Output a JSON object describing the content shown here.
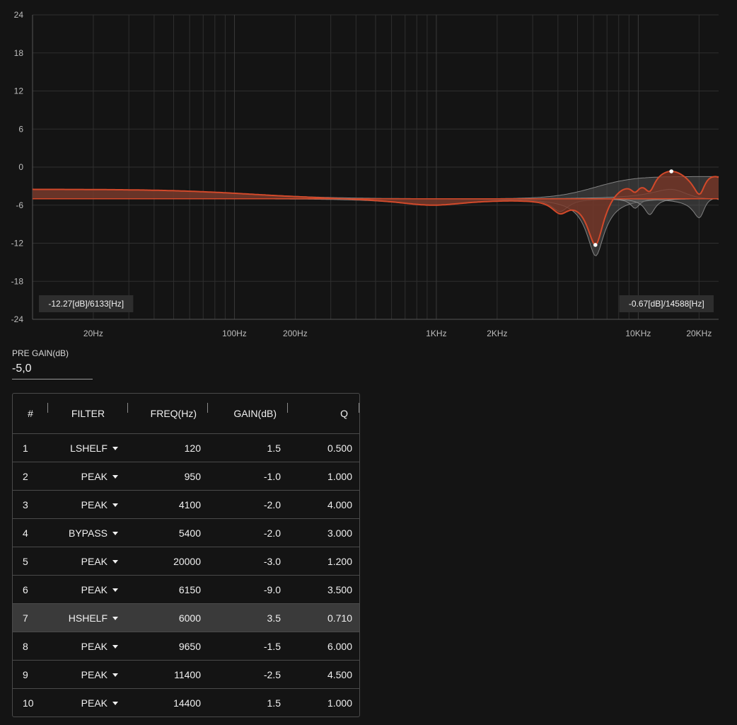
{
  "chart_data": {
    "type": "line",
    "x_scale": "log",
    "xlim": [
      10,
      25000
    ],
    "ylim": [
      -24,
      24
    ],
    "y_ticks": [
      24,
      18,
      12,
      6,
      0,
      -6,
      -12,
      -18,
      -24
    ],
    "x_tick_labels": [
      {
        "value": 20,
        "label": "20Hz"
      },
      {
        "value": 100,
        "label": "100Hz"
      },
      {
        "value": 200,
        "label": "200Hz"
      },
      {
        "value": 1000,
        "label": "1KHz"
      },
      {
        "value": 2000,
        "label": "2KHz"
      },
      {
        "value": 10000,
        "label": "10KHz"
      },
      {
        "value": 20000,
        "label": "20KHz"
      }
    ],
    "grid": true,
    "cursor_left": {
      "freq": 6133,
      "gain": -12.27,
      "label": "-12.27[dB]/6133[Hz]"
    },
    "cursor_right": {
      "freq": 14588,
      "gain": -0.67,
      "label": "-0.67[dB]/14588[Hz]"
    }
  },
  "colors": {
    "background": "#141414",
    "grid": "#2f2f2f",
    "response_curve": "#d2492a",
    "response_fill": "#7a3424",
    "band_fill": "#5c5c5c",
    "band_stroke": "#9a9a9a"
  },
  "pre_gain": {
    "label": "PRE GAIN(dB)",
    "value": "-5,0"
  },
  "table": {
    "headers": {
      "num": "#",
      "filter": "FILTER",
      "freq": "FREQ(Hz)",
      "gain": "GAIN(dB)",
      "q": "Q"
    },
    "selected_row": 6,
    "rows": [
      {
        "num": "1",
        "filter": "LSHELF",
        "freq": "120",
        "gain": "1.5",
        "q": "0.500"
      },
      {
        "num": "2",
        "filter": "PEAK",
        "freq": "950",
        "gain": "-1.0",
        "q": "1.000"
      },
      {
        "num": "3",
        "filter": "PEAK",
        "freq": "4100",
        "gain": "-2.0",
        "q": "4.000"
      },
      {
        "num": "4",
        "filter": "BYPASS",
        "freq": "5400",
        "gain": "-2.0",
        "q": "3.000"
      },
      {
        "num": "5",
        "filter": "PEAK",
        "freq": "20000",
        "gain": "-3.0",
        "q": "1.200"
      },
      {
        "num": "6",
        "filter": "PEAK",
        "freq": "6150",
        "gain": "-9.0",
        "q": "3.500"
      },
      {
        "num": "7",
        "filter": "HSHELF",
        "freq": "6000",
        "gain": "3.5",
        "q": "0.710"
      },
      {
        "num": "8",
        "filter": "PEAK",
        "freq": "9650",
        "gain": "-1.5",
        "q": "6.000"
      },
      {
        "num": "9",
        "filter": "PEAK",
        "freq": "11400",
        "gain": "-2.5",
        "q": "4.500"
      },
      {
        "num": "10",
        "filter": "PEAK",
        "freq": "14400",
        "gain": "1.5",
        "q": "1.000"
      }
    ]
  }
}
